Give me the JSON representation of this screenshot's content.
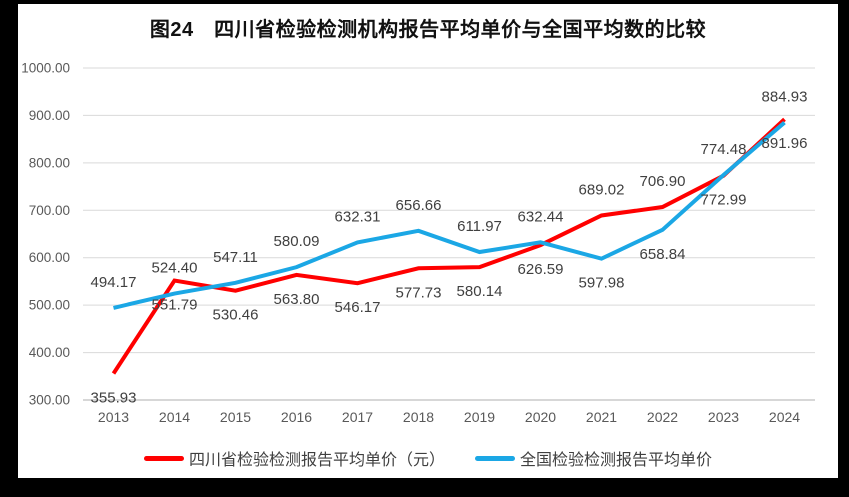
{
  "title": "图24　四川省检验检测机构报告平均单价与全国平均数的比较",
  "colors": {
    "sichuan_line": "#FF0000",
    "national_line": "#1BA7E5",
    "gridline": "#D9D9D9",
    "axis_line": "#BFBFBF",
    "tick_text": "#595959",
    "data_label_text": "#404040",
    "frame_background": "#FFFFFF",
    "outer_border": "#000000"
  },
  "legend": [
    {
      "label": "四川省检验检测报告平均单价（元）",
      "color": "#FF0000"
    },
    {
      "label": "全国检验检测报告平均单价",
      "color": "#1BA7E5"
    }
  ],
  "chart_data": {
    "type": "line",
    "title": "图24　四川省检验检测机构报告平均单价与全国平均数的比较",
    "xlabel": "",
    "ylabel": "",
    "categories": [
      "2013",
      "2014",
      "2015",
      "2016",
      "2017",
      "2018",
      "2019",
      "2020",
      "2021",
      "2022",
      "2023",
      "2024"
    ],
    "series": [
      {
        "name": "四川省检验检测报告平均单价（元）",
        "color": "#FF0000",
        "values": [
          355.93,
          551.79,
          530.46,
          563.8,
          546.17,
          577.73,
          580.14,
          626.59,
          689.02,
          706.9,
          772.99,
          891.96
        ],
        "label_pos": [
          "below",
          "below",
          "below",
          "below",
          "below",
          "below",
          "below",
          "below",
          "above",
          "above",
          "below",
          "below"
        ]
      },
      {
        "name": "全国检验检测报告平均单价",
        "color": "#1BA7E5",
        "values": [
          494.17,
          524.4,
          547.11,
          580.09,
          632.31,
          656.66,
          611.97,
          632.44,
          597.98,
          658.84,
          774.48,
          884.93
        ],
        "label_pos": [
          "above",
          "above",
          "above",
          "above",
          "above",
          "above",
          "above",
          "above",
          "below",
          "below",
          "above",
          "above"
        ]
      }
    ],
    "ylim": [
      300,
      1000
    ],
    "ytick_labels": [
      "300.00",
      "400.00",
      "500.00",
      "600.00",
      "700.00",
      "800.00",
      "900.00",
      "1000.00"
    ],
    "grid": true,
    "data_labels": true,
    "legend_position": "bottom"
  }
}
